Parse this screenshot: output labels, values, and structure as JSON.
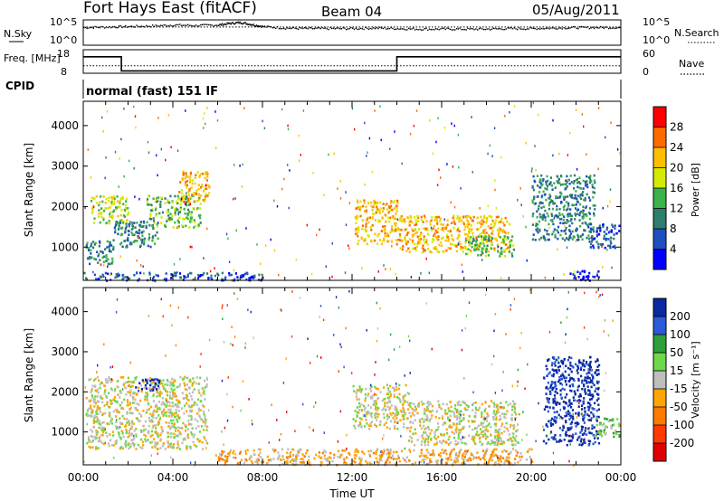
{
  "header": {
    "station": "Fort Hays East (fitACF)",
    "beam": "Beam 04",
    "date": "05/Aug/2011"
  },
  "chart_data": [
    {
      "type": "line",
      "panel": "noise",
      "left_label": "N.Sky",
      "right_label": "N.Search",
      "left_ticks": [
        "10^5",
        "10^0"
      ],
      "right_ticks": [
        "10^5",
        "10^0"
      ],
      "series": [
        {
          "name": "N.Sky",
          "style": "dots",
          "x_hours": [
            0,
            1,
            2,
            3,
            4,
            5,
            6,
            6.5,
            7,
            7.5,
            8,
            9,
            10,
            11,
            12,
            13,
            14,
            15,
            16,
            17,
            18,
            19,
            20,
            21,
            22,
            23,
            24
          ],
          "values_log10": [
            3.6,
            3.7,
            3.8,
            3.9,
            4.1,
            4.0,
            4.1,
            4.4,
            4.6,
            4.2,
            3.8,
            3.5,
            3.4,
            3.4,
            3.4,
            3.5,
            3.4,
            3.3,
            3.3,
            3.3,
            3.3,
            3.4,
            3.4,
            3.5,
            3.6,
            3.6,
            3.6
          ]
        },
        {
          "name": "N.Search",
          "style": "dotted",
          "x_hours": [
            0,
            24
          ],
          "values_log10": [
            3.6,
            3.6
          ]
        }
      ]
    },
    {
      "type": "line",
      "panel": "frequency",
      "left_label": "Freq. [MHz]",
      "right_label": "Nave",
      "left_ticks": [
        "18",
        "8"
      ],
      "right_ticks": [
        "60",
        "0"
      ],
      "series": [
        {
          "name": "Freq",
          "x_hours": [
            0,
            1.7,
            1.7,
            14,
            14,
            24
          ],
          "values_mhz": [
            15,
            15,
            9,
            9,
            15,
            15
          ]
        },
        {
          "name": "Nave",
          "style": "dotted",
          "x_hours": [
            0,
            24
          ],
          "values": [
            19,
            19
          ]
        }
      ]
    },
    {
      "type": "table",
      "panel": "cpid",
      "label": "CPID",
      "text": "normal (fast) 151 IF"
    },
    {
      "type": "heatmap",
      "panel": "power",
      "xlabel": "Time UT",
      "ylabel": "Slant Range [km]",
      "xlim_hours": [
        0,
        24
      ],
      "ylim_km": [
        180,
        4600
      ],
      "x_ticks": [
        "00:00",
        "04:00",
        "08:00",
        "12:00",
        "16:00",
        "20:00",
        "00:00"
      ],
      "y_ticks": [
        "1000",
        "2000",
        "3000",
        "4000"
      ],
      "colorbar_label": "Power [dB]",
      "colorbar_ticks": [
        "28",
        "24",
        "20",
        "16",
        "12",
        "8",
        "4"
      ],
      "colors": [
        "#ff0000",
        "#ff6a00",
        "#ffbf00",
        "#d4ea00",
        "#3cb24a",
        "#2e7d6e",
        "#1f4fbf",
        "#0000ff"
      ],
      "echo_regions": [
        {
          "t0": 0.1,
          "t1": 1.3,
          "r0": 600,
          "r1": 1200,
          "level": 5
        },
        {
          "t0": 0.3,
          "t1": 2.0,
          "r0": 1600,
          "r1": 2300,
          "level": 3
        },
        {
          "t0": 1.3,
          "t1": 3.3,
          "r0": 1000,
          "r1": 1700,
          "level": 5
        },
        {
          "t0": 2.8,
          "t1": 5.2,
          "r0": 1500,
          "r1": 2300,
          "level": 4
        },
        {
          "t0": 4.2,
          "t1": 5.6,
          "r0": 2100,
          "r1": 2900,
          "level": 2
        },
        {
          "t0": 12.1,
          "t1": 14.0,
          "r0": 1100,
          "r1": 2200,
          "level": 2
        },
        {
          "t0": 14.0,
          "t1": 19.0,
          "r0": 900,
          "r1": 1800,
          "level": 2
        },
        {
          "t0": 17.0,
          "t1": 19.2,
          "r0": 800,
          "r1": 1300,
          "level": 4
        },
        {
          "t0": 20.0,
          "t1": 22.8,
          "r0": 1200,
          "r1": 2800,
          "level": 5
        },
        {
          "t0": 22.5,
          "t1": 23.9,
          "r0": 1000,
          "r1": 1600,
          "level": 6
        },
        {
          "t0": 0.0,
          "t1": 8.0,
          "r0": 200,
          "r1": 400,
          "level": 6
        },
        {
          "t0": 21.7,
          "t1": 23.0,
          "r0": 200,
          "r1": 450,
          "level": 7
        }
      ]
    },
    {
      "type": "heatmap",
      "panel": "velocity",
      "xlabel": "Time UT",
      "ylabel": "Slant Range [km]",
      "xlim_hours": [
        0,
        24
      ],
      "ylim_km": [
        180,
        4600
      ],
      "x_ticks": [
        "00:00",
        "04:00",
        "08:00",
        "12:00",
        "16:00",
        "20:00",
        "00:00"
      ],
      "y_ticks": [
        "1000",
        "2000",
        "3000",
        "4000"
      ],
      "colorbar_label": "Velocity [m s⁻¹]",
      "colorbar_ticks": [
        "200",
        "100",
        "50",
        "15",
        "-15",
        "-50",
        "-100",
        "-200"
      ],
      "colors": [
        "#0a28a0",
        "#2a5ad8",
        "#2e9f3a",
        "#6ed84a",
        "#bebebe",
        "#ffa500",
        "#ff7a00",
        "#ff3a00",
        "#e00000"
      ],
      "echo_regions": [
        {
          "t0": 0.1,
          "t1": 5.5,
          "r0": 600,
          "r1": 2400,
          "level": 4
        },
        {
          "t0": 2.3,
          "t1": 3.5,
          "r0": 2050,
          "r1": 2350,
          "level": 0
        },
        {
          "t0": 12.0,
          "t1": 14.5,
          "r0": 1100,
          "r1": 2200,
          "level": 4
        },
        {
          "t0": 14.5,
          "t1": 19.5,
          "r0": 700,
          "r1": 1800,
          "level": 4
        },
        {
          "t0": 20.5,
          "t1": 23.0,
          "r0": 700,
          "r1": 2900,
          "level": 0
        },
        {
          "t0": 22.8,
          "t1": 23.9,
          "r0": 900,
          "r1": 1400,
          "level": 3
        },
        {
          "t0": 6.0,
          "t1": 20.0,
          "r0": 200,
          "r1": 600,
          "level": 5
        }
      ]
    }
  ]
}
